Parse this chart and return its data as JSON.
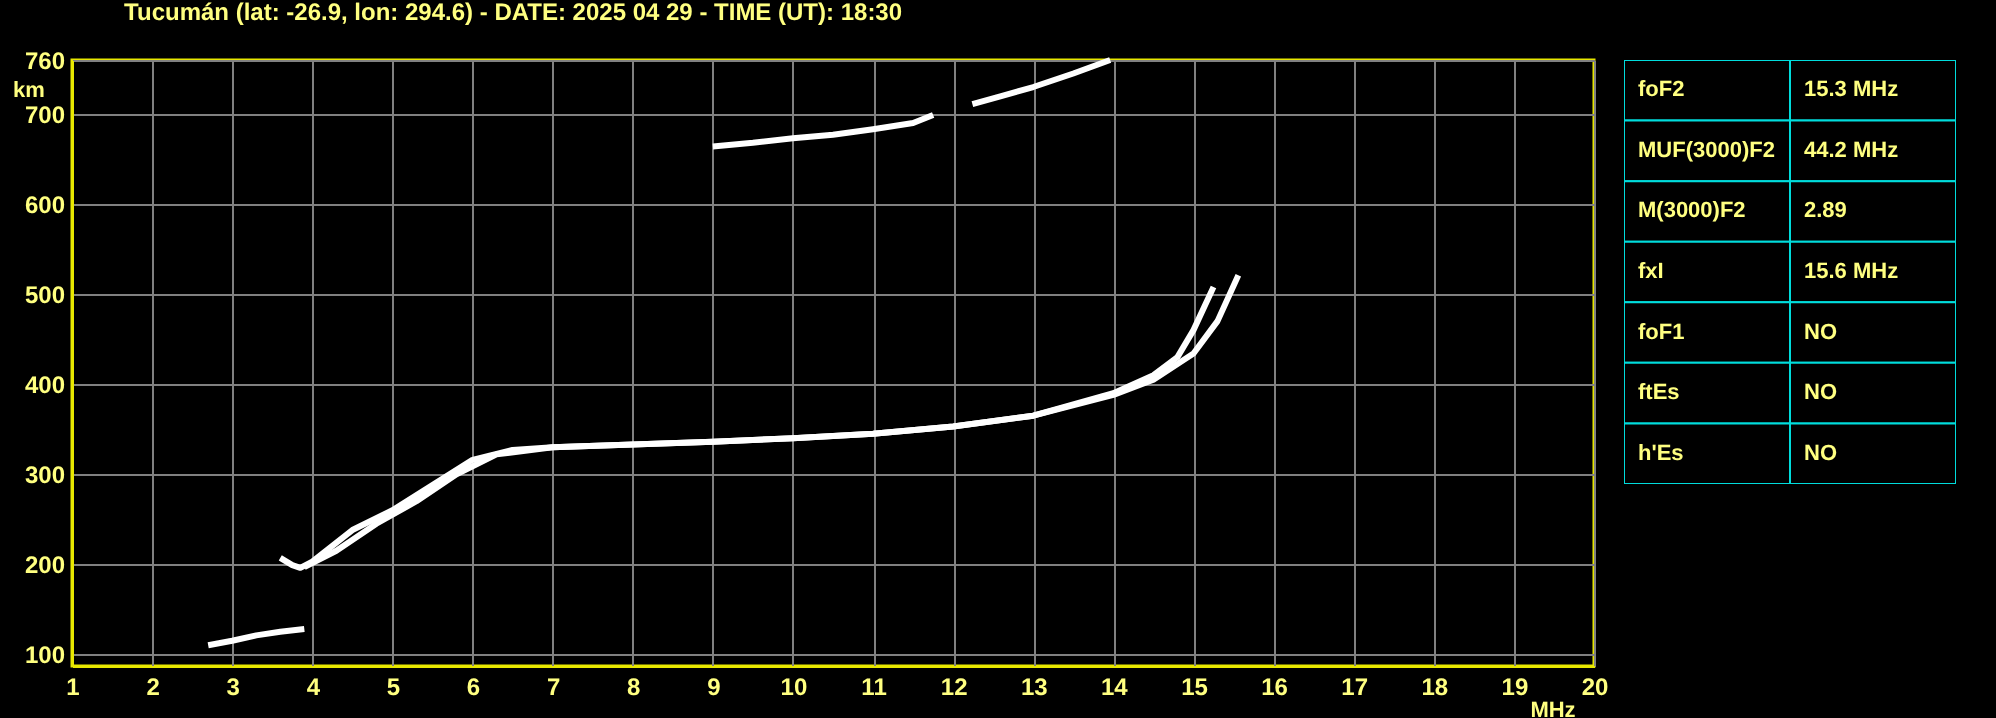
{
  "chart_data": [
    {
      "type": "line",
      "title": "Tucumán (lat: -26.9, lon: 294.6) - DATE: 2025 04 29 - TIME (UT): 18:30",
      "xlabel": "MHz",
      "ylabel": "km",
      "xlim": [
        1,
        20
      ],
      "ylim": [
        87,
        760
      ],
      "xticks": [
        1,
        2,
        3,
        4,
        5,
        6,
        7,
        8,
        9,
        10,
        11,
        12,
        13,
        14,
        15,
        16,
        17,
        18,
        19,
        20
      ],
      "yticks": [
        100,
        200,
        300,
        400,
        500,
        600,
        700,
        760
      ],
      "grid": true,
      "series": [
        {
          "color": "#ffffff",
          "x": [
            2.7,
            3.0,
            3.3,
            3.6,
            3.9
          ],
          "values": [
            110,
            115,
            121,
            125,
            128
          ]
        },
        {
          "color": "#ffffff",
          "x": [
            3.6,
            3.75,
            3.85,
            4.0,
            4.5,
            5.0,
            5.5,
            6.0,
            6.5,
            7,
            8,
            9,
            10,
            11,
            12,
            13,
            14,
            14.5,
            14.8,
            15.0,
            15.25
          ],
          "values": [
            207,
            199,
            196,
            203,
            238,
            260,
            288,
            316,
            327,
            330,
            333,
            336,
            340,
            345,
            353,
            365,
            390,
            410,
            430,
            460,
            508
          ]
        },
        {
          "color": "#ffffff",
          "x": [
            3.9,
            4.3,
            4.8,
            5.3,
            5.8,
            6.3,
            7,
            8,
            9,
            10,
            11,
            12,
            13,
            14,
            14.5,
            15.0,
            15.3,
            15.56
          ],
          "values": [
            197,
            215,
            245,
            270,
            300,
            322,
            330,
            333,
            336,
            340,
            345,
            353,
            365,
            388,
            405,
            434,
            470,
            521
          ]
        },
        {
          "color": "#ffffff",
          "x": [
            9.0,
            9.5,
            10,
            10.5,
            11,
            11.5,
            11.75
          ],
          "values": [
            664,
            668,
            673,
            677,
            683,
            690,
            699
          ]
        },
        {
          "color": "#ffffff",
          "x": [
            12.24,
            12.6,
            13,
            13.5,
            13.96
          ],
          "values": [
            711,
            720,
            730,
            745,
            760
          ]
        }
      ]
    },
    {
      "type": "other",
      "annotations": [
        "foF2",
        "15.3 MHz",
        "MUF(3000)F2",
        "44.2 MHz",
        "M(3000)F2",
        "2.89",
        "fxI",
        "15.6 MHz",
        "foF1",
        "NO",
        "ftEs",
        "NO",
        "h'Es",
        "NO"
      ]
    }
  ]
}
